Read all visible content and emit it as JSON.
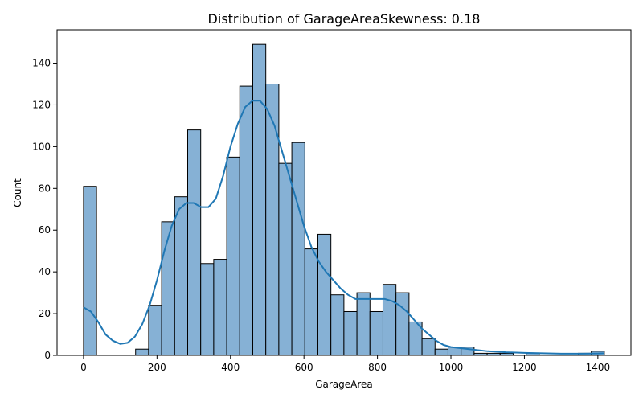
{
  "chart_data": {
    "type": "bar",
    "title": "Distribution of GarageAreaSkewness: 0.18",
    "xlabel": "GarageArea",
    "ylabel": "Count",
    "xlim": [
      -72,
      1490
    ],
    "ylim": [
      0,
      156
    ],
    "xticks": [
      0,
      200,
      400,
      600,
      800,
      1000,
      1200,
      1400
    ],
    "yticks": [
      0,
      20,
      40,
      60,
      80,
      100,
      120,
      140
    ],
    "grid": false,
    "bar_color": "#86b1d5",
    "edge_color": "#000000",
    "kde_color": "#1f77b4",
    "bin_width": 35.4375,
    "bin_start": 0,
    "values": [
      81,
      0,
      0,
      0,
      3,
      24,
      64,
      76,
      108,
      44,
      46,
      95,
      129,
      149,
      130,
      92,
      102,
      51,
      58,
      29,
      21,
      30,
      21,
      34,
      30,
      16,
      8,
      3,
      4,
      4,
      1,
      1,
      1,
      0,
      1,
      0,
      0,
      0,
      1,
      2
    ],
    "kde": {
      "x": [
        0,
        20,
        40,
        60,
        80,
        100,
        120,
        140,
        160,
        180,
        200,
        220,
        240,
        260,
        280,
        300,
        320,
        340,
        360,
        380,
        400,
        420,
        440,
        460,
        480,
        500,
        520,
        540,
        560,
        580,
        600,
        620,
        640,
        660,
        680,
        700,
        720,
        740,
        760,
        780,
        800,
        820,
        840,
        860,
        880,
        900,
        920,
        940,
        960,
        980,
        1000,
        1050,
        1100,
        1150,
        1200,
        1250,
        1300,
        1350,
        1400,
        1418
      ],
      "y": [
        23,
        21,
        16,
        10,
        7,
        5.5,
        6,
        9,
        15,
        24,
        36,
        50,
        62,
        70,
        73,
        73,
        71,
        71,
        75,
        86,
        100,
        111,
        119,
        122,
        122,
        118,
        110,
        98,
        86,
        74,
        62,
        52,
        45,
        40,
        36,
        32,
        29,
        27,
        27,
        27,
        27,
        27,
        26,
        24,
        21,
        17,
        13,
        10,
        7,
        5,
        4,
        3,
        2,
        1.5,
        1.2,
        1,
        0.8,
        0.8,
        0.9,
        1
      ]
    }
  }
}
